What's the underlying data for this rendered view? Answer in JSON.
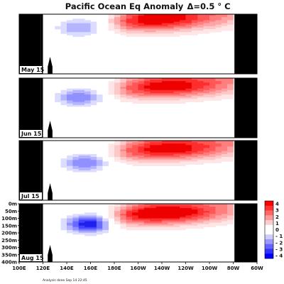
{
  "chart_data": {
    "type": "heatmap",
    "title": "Pacific Ocean Eq Anomaly",
    "contour_interval": "Δ=0.5 ° C",
    "xlabel": "",
    "ylabel": "",
    "x_ticks": [
      "100E",
      "120E",
      "140E",
      "160E",
      "180E",
      "160W",
      "140W",
      "120W",
      "100W",
      "80W",
      "60W"
    ],
    "y_ticks": [
      "0m",
      "50m",
      "100m",
      "150m",
      "200m",
      "250m",
      "300m",
      "350m",
      "400m"
    ],
    "colorbar": {
      "ticks": [
        "4",
        "3",
        "2",
        "1",
        "0",
        "- 1",
        "- 2",
        "- 3",
        "- 4"
      ],
      "range": [
        -4,
        4
      ],
      "colors": [
        "#ff0000",
        "#ff3333",
        "#ff6666",
        "#ff9999",
        "#ffcccc",
        "#ffffff",
        "#ffffff",
        "#ccccff",
        "#9999ff",
        "#6666ff",
        "#3333ff",
        "#0000ff"
      ]
    },
    "panels": [
      {
        "label": "May 15",
        "warm_core": {
          "lon": 215,
          "depth": 40,
          "peak": 3.5
        },
        "cold_core": {
          "lon": 150,
          "depth": 90,
          "peak": -1.5
        }
      },
      {
        "label": "Jun 15",
        "warm_core": {
          "lon": 225,
          "depth": 60,
          "peak": 3.5
        },
        "cold_core": {
          "lon": 150,
          "depth": 130,
          "peak": -2.0
        }
      },
      {
        "label": "Jul 15",
        "warm_core": {
          "lon": 225,
          "depth": 60,
          "peak": 3.5
        },
        "cold_core": {
          "lon": 155,
          "depth": 150,
          "peak": -2.0
        }
      },
      {
        "label": "Aug 15",
        "warm_core": {
          "lon": 220,
          "depth": 70,
          "peak": 4.0
        },
        "cold_core": {
          "lon": 158,
          "depth": 140,
          "peak": -3.5
        }
      }
    ]
  },
  "footnote": "Analysis done Sep 14 22:45"
}
